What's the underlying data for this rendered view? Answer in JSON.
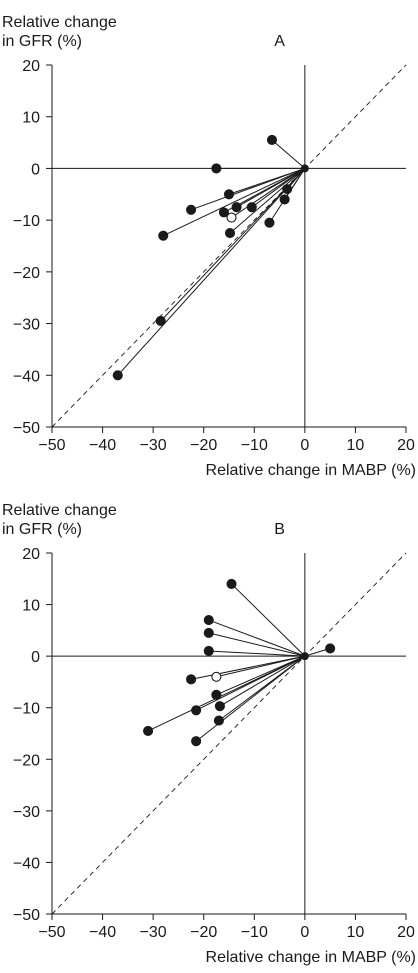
{
  "chart_data": [
    {
      "type": "scatter",
      "panel_label": "A",
      "ylabel": [
        "Relative change",
        "in GFR (%)"
      ],
      "xlabel": "Relative change in MABP (%)",
      "xlim": [
        -50,
        20
      ],
      "ylim": [
        -50,
        20
      ],
      "xticks": [
        -50,
        -40,
        -30,
        -20,
        -10,
        0,
        10,
        20
      ],
      "yticks": [
        -50,
        -40,
        -30,
        -20,
        -10,
        0,
        10,
        20
      ],
      "x_tick_labels": [
        "−50",
        "−40",
        "−30",
        "−20",
        "−10",
        "0",
        "10",
        "20"
      ],
      "y_tick_labels": [
        "−50",
        "−40",
        "−30",
        "−20",
        "−10",
        "0",
        "10",
        "20"
      ],
      "identity_line": true,
      "origin": [
        0,
        0
      ],
      "points": [
        {
          "x": -6.5,
          "y": 5.5,
          "filled": true
        },
        {
          "x": -17.5,
          "y": 0,
          "filled": true
        },
        {
          "x": -15,
          "y": -5,
          "filled": true
        },
        {
          "x": -22.5,
          "y": -8,
          "filled": true
        },
        {
          "x": -16,
          "y": -8.5,
          "filled": true
        },
        {
          "x": -13.5,
          "y": -7.5,
          "filled": true
        },
        {
          "x": -10.5,
          "y": -7.5,
          "filled": true
        },
        {
          "x": -14.5,
          "y": -9.5,
          "filled": false
        },
        {
          "x": -14.8,
          "y": -12.5,
          "filled": true
        },
        {
          "x": -28,
          "y": -13,
          "filled": true
        },
        {
          "x": -3.5,
          "y": -4,
          "filled": true
        },
        {
          "x": -4,
          "y": -6,
          "filled": true
        },
        {
          "x": -7,
          "y": -10.5,
          "filled": true
        },
        {
          "x": -28.5,
          "y": -29.5,
          "filled": true
        },
        {
          "x": -37,
          "y": -40,
          "filled": true
        }
      ]
    },
    {
      "type": "scatter",
      "panel_label": "B",
      "ylabel": [
        "Relative change",
        "in GFR (%)"
      ],
      "xlabel": "Relative change in MABP (%)",
      "xlim": [
        -50,
        20
      ],
      "ylim": [
        -50,
        20
      ],
      "xticks": [
        -50,
        -40,
        -30,
        -20,
        -10,
        0,
        10,
        20
      ],
      "yticks": [
        -50,
        -40,
        -30,
        -20,
        -10,
        0,
        10,
        20
      ],
      "x_tick_labels": [
        "−50",
        "−40",
        "−30",
        "−20",
        "−10",
        "0",
        "10",
        "20"
      ],
      "y_tick_labels": [
        "−50",
        "−40",
        "−30",
        "−20",
        "−10",
        "0",
        "10",
        "20"
      ],
      "identity_line": true,
      "origin": [
        0,
        0
      ],
      "points": [
        {
          "x": -14.5,
          "y": 14,
          "filled": true
        },
        {
          "x": -19,
          "y": 7,
          "filled": true
        },
        {
          "x": -19,
          "y": 4.5,
          "filled": true
        },
        {
          "x": -19,
          "y": 1,
          "filled": true
        },
        {
          "x": 5,
          "y": 1.5,
          "filled": true
        },
        {
          "x": -22.5,
          "y": -4.5,
          "filled": true
        },
        {
          "x": -17.5,
          "y": -4,
          "filled": false
        },
        {
          "x": -17.5,
          "y": -7.5,
          "filled": true
        },
        {
          "x": -16.8,
          "y": -9.7,
          "filled": true
        },
        {
          "x": -21.5,
          "y": -10.5,
          "filled": true
        },
        {
          "x": -17,
          "y": -12.5,
          "filled": true
        },
        {
          "x": -31,
          "y": -14.5,
          "filled": true
        },
        {
          "x": -21.5,
          "y": -16.5,
          "filled": true
        }
      ]
    }
  ]
}
